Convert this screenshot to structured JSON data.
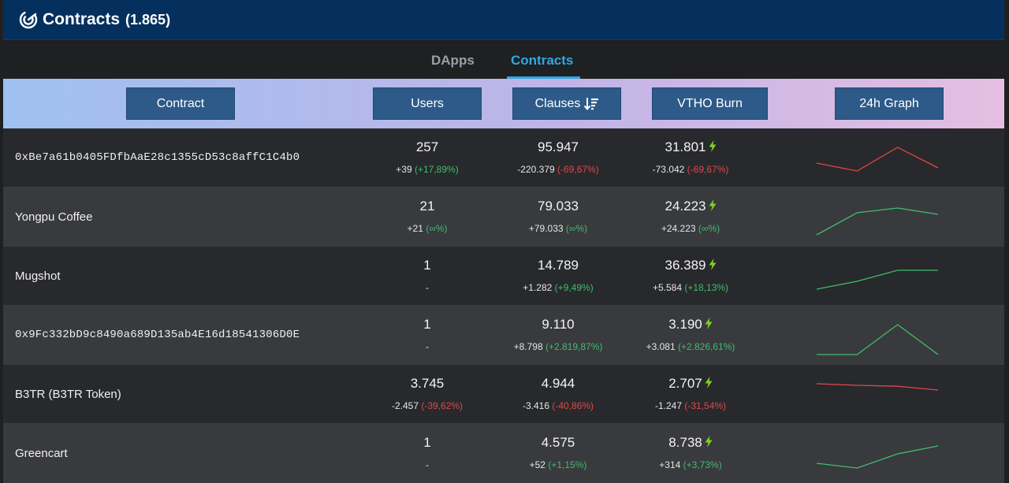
{
  "header": {
    "title": "Contracts",
    "count": "(1.865)"
  },
  "tabs": [
    {
      "label": "DApps",
      "active": false
    },
    {
      "label": "Contracts",
      "active": true
    }
  ],
  "columns": {
    "contract": "Contract",
    "users": "Users",
    "clauses": "Clauses",
    "vtho": "VTHO Burn",
    "graph": "24h Graph"
  },
  "colors": {
    "positive": "#3fbd6c",
    "negative": "#e04848",
    "accent": "#2ea8e6",
    "bolt": "#7ed321"
  },
  "rows": [
    {
      "name": "0xBe7a61b0405FDfbAaE28c1355cD53c8affC1C4b0",
      "users": {
        "value": "257",
        "delta": "+39",
        "pct": "(+17,89%)",
        "pct_dir": "pos"
      },
      "clauses": {
        "value": "95.947",
        "delta": "-220.379",
        "pct": "(-69,67%)",
        "pct_dir": "neg"
      },
      "vtho": {
        "value": "31.801",
        "delta": "-73.042",
        "pct": "(-69,67%)",
        "pct_dir": "neg"
      },
      "graph": {
        "trend": "neg",
        "points": [
          0.45,
          0.2,
          0.95,
          0.3
        ]
      }
    },
    {
      "name": "Yongpu Coffee",
      "users": {
        "value": "21",
        "delta": "+21",
        "pct": "(∞%)",
        "pct_dir": "pos"
      },
      "clauses": {
        "value": "79.033",
        "delta": "+79.033",
        "pct": "(∞%)",
        "pct_dir": "pos"
      },
      "vtho": {
        "value": "24.223",
        "delta": "+24.223",
        "pct": "(∞%)",
        "pct_dir": "pos"
      },
      "graph": {
        "trend": "pos",
        "points": [
          0.05,
          0.75,
          0.9,
          0.7
        ]
      }
    },
    {
      "name": "Mugshot",
      "users": {
        "value": "1",
        "delta": "-",
        "pct": "",
        "pct_dir": ""
      },
      "clauses": {
        "value": "14.789",
        "delta": "+1.282",
        "pct": "(+9,49%)",
        "pct_dir": "pos"
      },
      "vtho": {
        "value": "36.389",
        "delta": "+5.584",
        "pct": "(+18,13%)",
        "pct_dir": "pos"
      },
      "graph": {
        "trend": "pos",
        "points": [
          0.2,
          0.45,
          0.8,
          0.8
        ]
      }
    },
    {
      "name": "0x9Fc332bD9c8490a689D135ab4E16d18541306D0E",
      "users": {
        "value": "1",
        "delta": "-",
        "pct": "",
        "pct_dir": ""
      },
      "clauses": {
        "value": "9.110",
        "delta": "+8.798",
        "pct": "(+2.819,87%)",
        "pct_dir": "pos"
      },
      "vtho": {
        "value": "3.190",
        "delta": "+3.081",
        "pct": "(+2.826,61%)",
        "pct_dir": "pos"
      },
      "graph": {
        "trend": "pos",
        "points": [
          0.0,
          0.0,
          0.95,
          0.0
        ]
      }
    },
    {
      "name": "B3TR (B3TR Token)",
      "users": {
        "value": "3.745",
        "delta": "-2.457",
        "pct": "(-39,62%)",
        "pct_dir": "neg"
      },
      "clauses": {
        "value": "4.944",
        "delta": "-3.416",
        "pct": "(-40,86%)",
        "pct_dir": "neg"
      },
      "vtho": {
        "value": "2.707",
        "delta": "-1.247",
        "pct": "(-31,54%)",
        "pct_dir": "neg"
      },
      "graph": {
        "trend": "neg",
        "points": [
          0.95,
          0.9,
          0.87,
          0.75
        ]
      }
    },
    {
      "name": "Greencart",
      "users": {
        "value": "1",
        "delta": "-",
        "pct": "",
        "pct_dir": ""
      },
      "clauses": {
        "value": "4.575",
        "delta": "+52",
        "pct": "(+1,15%)",
        "pct_dir": "pos"
      },
      "vtho": {
        "value": "8.738",
        "delta": "+314",
        "pct": "(+3,73%)",
        "pct_dir": "pos"
      },
      "graph": {
        "trend": "pos",
        "points": [
          0.3,
          0.15,
          0.6,
          0.85
        ]
      }
    }
  ]
}
